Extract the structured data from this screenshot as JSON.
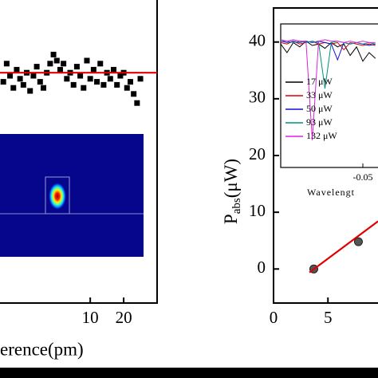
{
  "chart_data": [
    {
      "type": "scatter",
      "x_label": "erence(pm)",
      "xlim": [
        -17,
        30
      ],
      "xticks": [
        10,
        20
      ],
      "ylim": [
        0,
        10
      ],
      "series": [
        {
          "style": "markers",
          "color": "#000000",
          "x": [
            -16,
            -15,
            -14,
            -13,
            -12,
            -11,
            -10,
            -9,
            -8,
            -7,
            -6,
            -5,
            -4,
            -3,
            -2,
            -1,
            0,
            1,
            2,
            3,
            4,
            5,
            6,
            7,
            8,
            9,
            10,
            11,
            12,
            13,
            14,
            15,
            16,
            17,
            18,
            19,
            20,
            21,
            22,
            23,
            24,
            25
          ],
          "values": [
            7.3,
            7.9,
            7.5,
            7.1,
            7.7,
            7.4,
            7.2,
            7.6,
            7.0,
            7.5,
            7.8,
            7.3,
            7.1,
            7.6,
            7.9,
            8.2,
            8.0,
            7.7,
            7.9,
            7.4,
            7.6,
            7.2,
            7.8,
            7.5,
            7.1,
            8.0,
            7.4,
            7.7,
            7.3,
            7.9,
            7.2,
            7.6,
            7.4,
            7.7,
            7.2,
            7.5,
            7.6,
            7.1,
            7.3,
            6.9,
            6.6,
            7.4
          ]
        },
        {
          "style": "line",
          "color": "#e00000",
          "x": [
            -17,
            30
          ],
          "values": [
            7.6,
            7.6
          ]
        }
      ]
    },
    {
      "type": "scatter",
      "y_label": "P",
      "y_label_sub": "abs",
      "y_label_unit": "(μW)",
      "xlim": [
        0,
        9.6
      ],
      "xticks": [
        0,
        5
      ],
      "ylim": [
        -6,
        46
      ],
      "yticks": [
        0,
        10,
        20,
        30,
        40
      ],
      "series": [
        {
          "style": "markers",
          "color": "#555555",
          "x": [
            3.7,
            7.8
          ],
          "values": [
            0,
            4.8
          ]
        },
        {
          "style": "line",
          "color": "#e00000",
          "x": [
            3.3,
            9.6
          ],
          "values": [
            -0.6,
            8.4
          ]
        }
      ],
      "inset": {
        "type": "line",
        "x_label": "Wavelengt",
        "xlim": [
          -0.18,
          -0.026
        ],
        "xticks": [
          -0.05
        ],
        "ylim": [
          0,
          1
        ],
        "x": [
          -0.18,
          -0.17,
          -0.16,
          -0.15,
          -0.14,
          -0.13,
          -0.12,
          -0.11,
          -0.1,
          -0.09,
          -0.08,
          -0.07,
          -0.06,
          -0.05,
          -0.04,
          -0.03
        ],
        "series": [
          {
            "name": "17 μW",
            "color": "#000000",
            "values": [
              0.86,
              0.8,
              0.87,
              0.84,
              0.88,
              0.85,
              0.86,
              0.83,
              0.87,
              0.84,
              0.86,
              0.78,
              0.84,
              0.74,
              0.8,
              0.76
            ]
          },
          {
            "name": "33 μW",
            "color": "#e00000",
            "values": [
              0.87,
              0.86,
              0.88,
              0.86,
              0.87,
              0.88,
              0.86,
              0.87,
              0.86,
              0.87,
              0.82,
              0.87,
              0.86,
              0.85,
              0.86,
              0.85
            ]
          },
          {
            "name": "50 μW",
            "color": "#1010d0",
            "values": [
              0.88,
              0.87,
              0.88,
              0.87,
              0.88,
              0.87,
              0.88,
              0.87,
              0.86,
              0.75,
              0.87,
              0.86,
              0.87,
              0.86,
              0.85,
              0.86
            ]
          },
          {
            "name": "93 μW",
            "color": "#009080",
            "values": [
              0.88,
              0.88,
              0.87,
              0.88,
              0.87,
              0.88,
              0.87,
              0.55,
              0.87,
              0.88,
              0.87,
              0.86,
              0.87,
              0.86,
              0.87,
              0.86
            ]
          },
          {
            "name": "132 μW",
            "color": "#e020e0",
            "values": [
              0.89,
              0.88,
              0.89,
              0.88,
              0.88,
              0.19,
              0.88,
              0.89,
              0.88,
              0.88,
              0.87,
              0.88,
              0.87,
              0.88,
              0.87,
              0.87
            ]
          }
        ]
      }
    }
  ]
}
